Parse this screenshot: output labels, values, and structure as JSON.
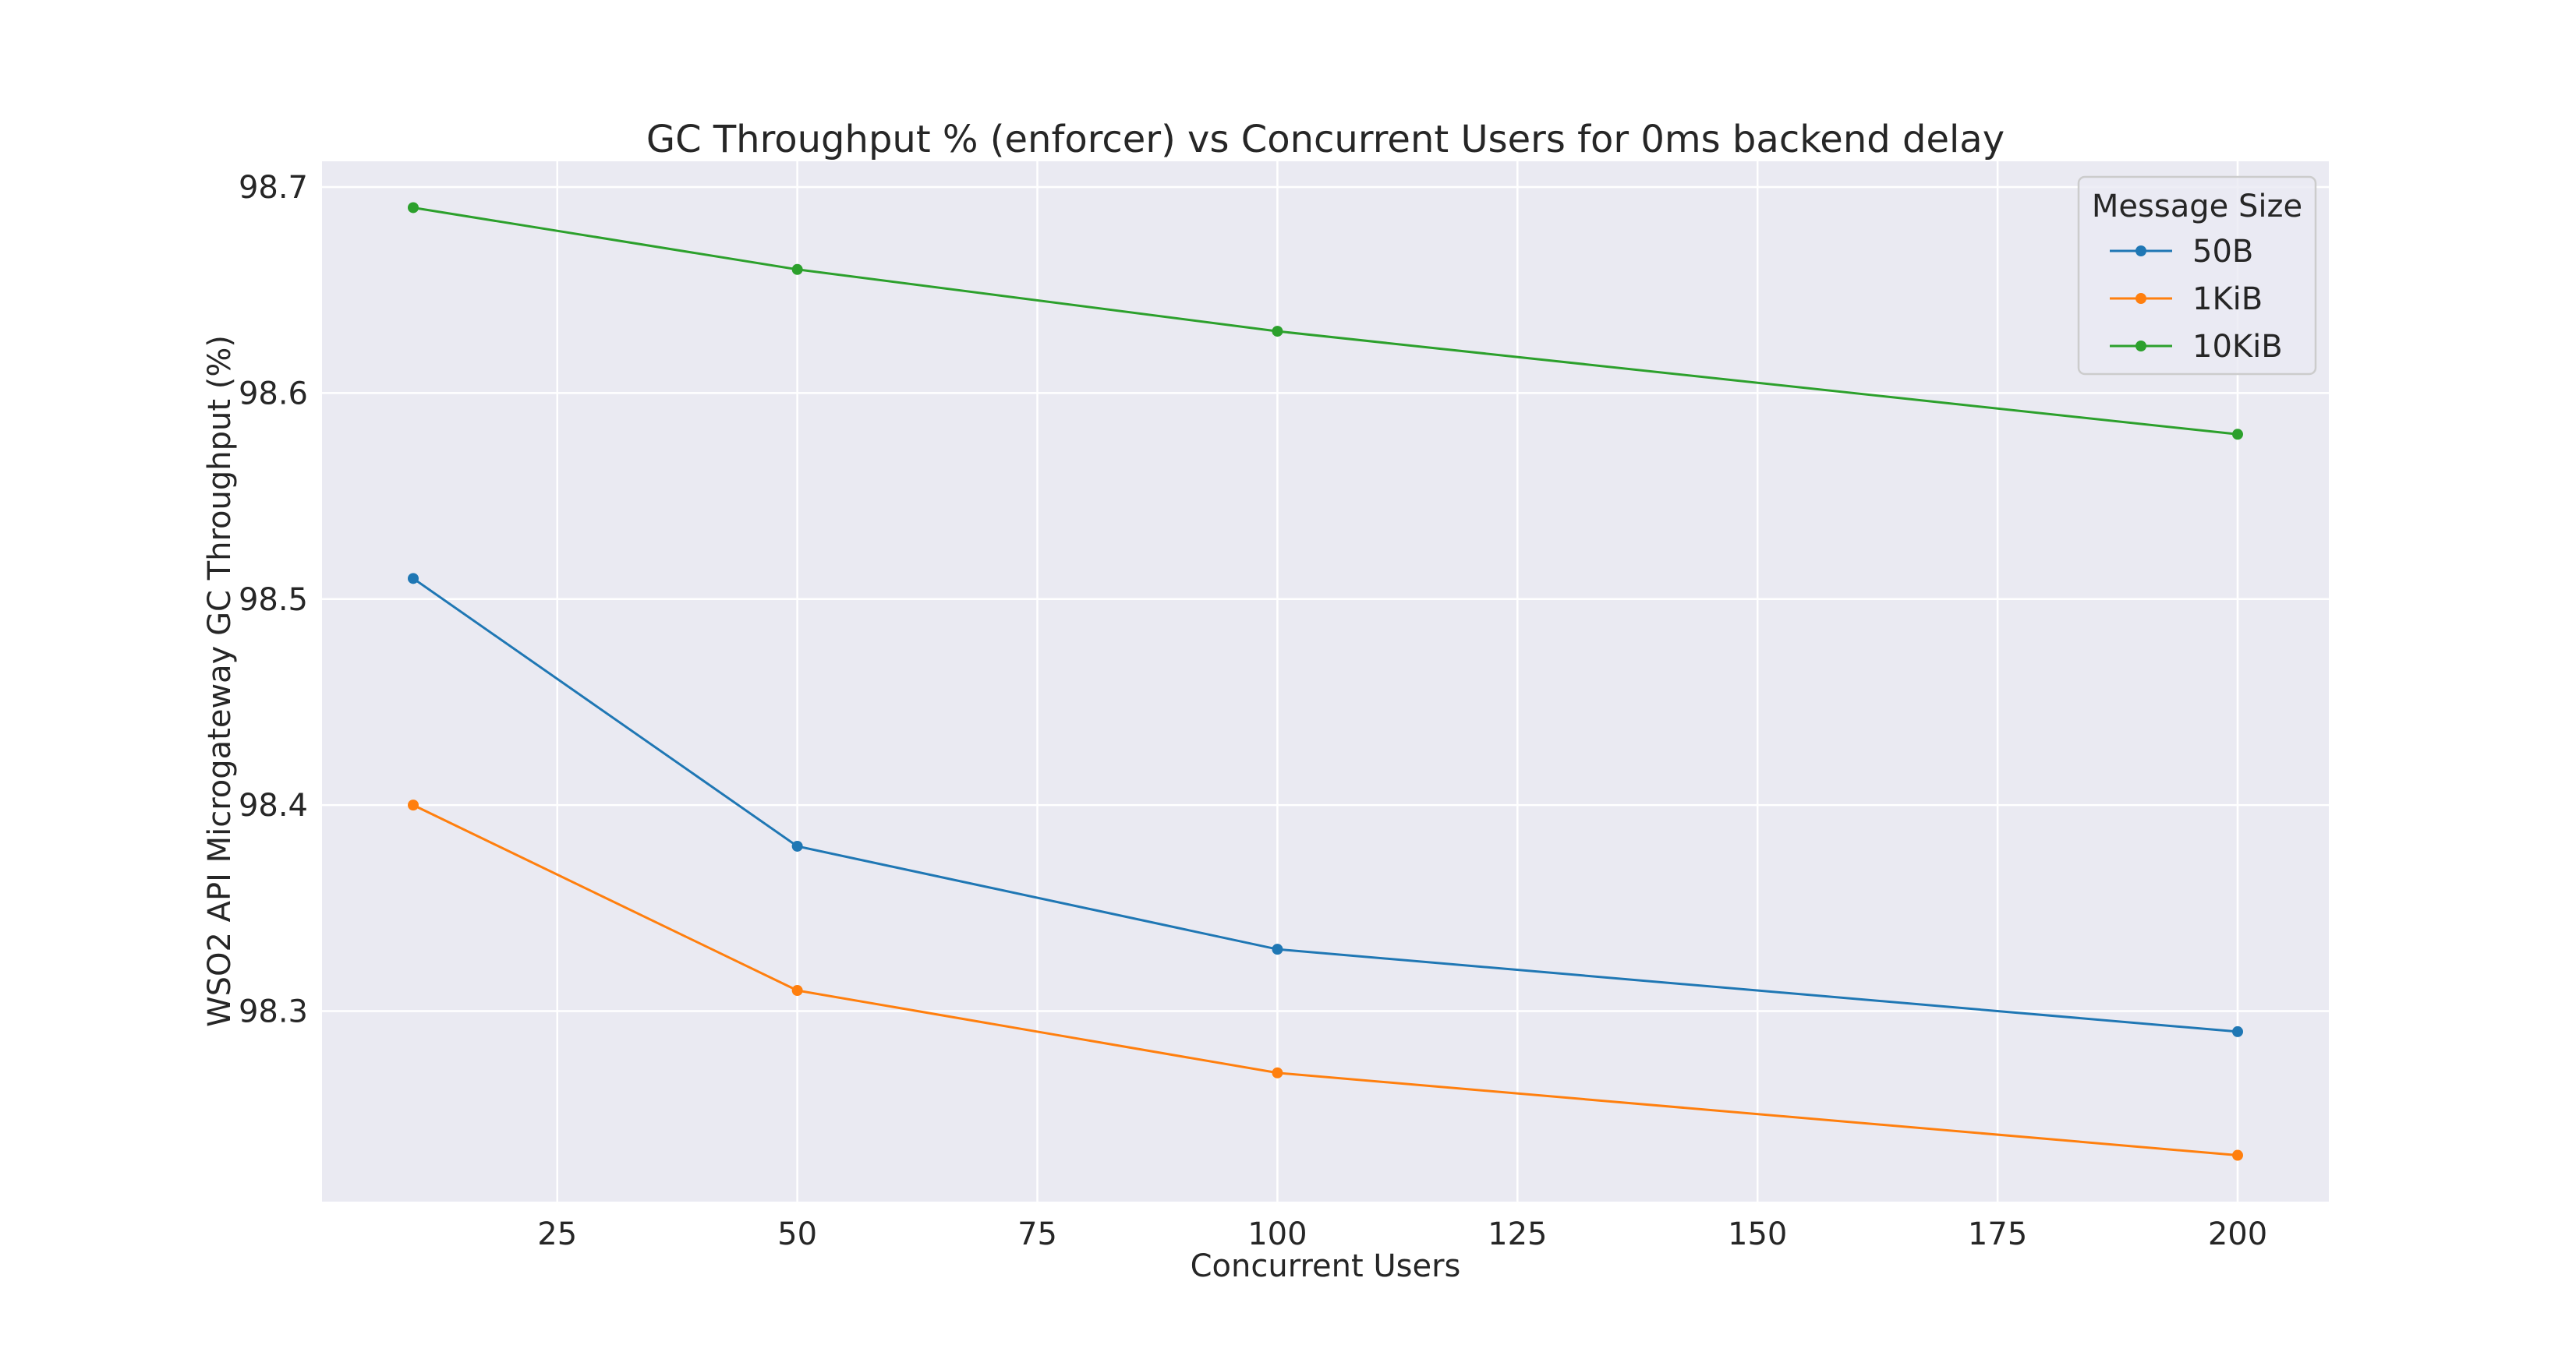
{
  "chart_data": {
    "type": "line",
    "title": "GC Throughput % (enforcer) vs Concurrent Users for 0ms backend delay",
    "xlabel": "Concurrent Users",
    "ylabel": "WSO2 API Microgateway GC Throughput (%)",
    "x": [
      10,
      50,
      100,
      200
    ],
    "xlim": [
      0.5,
      209.5
    ],
    "ylim": [
      98.2075,
      98.7125
    ],
    "xticks": [
      25,
      50,
      75,
      100,
      125,
      150,
      175,
      200
    ],
    "yticks": [
      98.3,
      98.4,
      98.5,
      98.6,
      98.7
    ],
    "grid": true,
    "legend": {
      "title": "Message Size",
      "position": "top-right"
    },
    "series": [
      {
        "name": "50B",
        "color": "#1f77b4",
        "values": [
          98.51,
          98.38,
          98.33,
          98.29
        ]
      },
      {
        "name": "1KiB",
        "color": "#ff7f0e",
        "values": [
          98.4,
          98.31,
          98.27,
          98.23
        ]
      },
      {
        "name": "10KiB",
        "color": "#2ca02c",
        "values": [
          98.69,
          98.66,
          98.63,
          98.58
        ]
      }
    ],
    "background": "#eaeaf2"
  }
}
